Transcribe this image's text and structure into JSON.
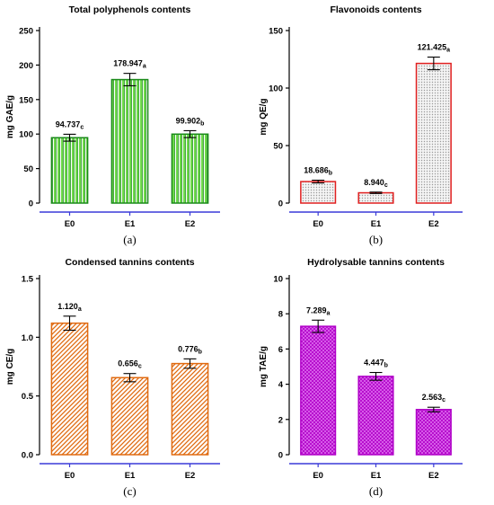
{
  "chart_data": [
    {
      "panel": "(a)",
      "type": "bar",
      "title": "Total polyphenols contents",
      "ylabel": "mg GAE/g",
      "xlabel": "",
      "categories": [
        "E0",
        "E1",
        "E2"
      ],
      "values": [
        94.737,
        178.947,
        99.902
      ],
      "errors": [
        5,
        9,
        5
      ],
      "value_labels": [
        "94.737",
        "178.947",
        "99.902"
      ],
      "letters": [
        "c",
        "a",
        "b"
      ],
      "ylim": [
        0,
        250
      ],
      "yticks": [
        0,
        50,
        100,
        150,
        200,
        250
      ],
      "ytick_labels": [
        "0",
        "50",
        "100",
        "150",
        "200",
        "250"
      ],
      "pattern": "vertical-stripes",
      "color": "#1a8a1a",
      "fill": "#6fdb4a",
      "axis_color": "#3a3ad8"
    },
    {
      "panel": "(b)",
      "type": "bar",
      "title": "Flavonoids contents",
      "ylabel": "mg QE/g",
      "xlabel": "",
      "categories": [
        "E0",
        "E1",
        "E2"
      ],
      "values": [
        18.686,
        8.94,
        121.425
      ],
      "errors": [
        1.2,
        0.6,
        5.5
      ],
      "value_labels": [
        "18.686",
        "8.940",
        "121.425"
      ],
      "letters": [
        "b",
        "c",
        "a"
      ],
      "ylim": [
        0,
        150
      ],
      "yticks": [
        0,
        50,
        100,
        150
      ],
      "ytick_labels": [
        "0",
        "50",
        "100",
        "150"
      ],
      "pattern": "dots",
      "color": "#e02020",
      "fill": "#d4d4d4",
      "axis_color": "#3a3ad8"
    },
    {
      "panel": "(c)",
      "type": "bar",
      "title": "Condensed tannins contents",
      "ylabel": "mg CE/g",
      "xlabel": "",
      "categories": [
        "E0",
        "E1",
        "E2"
      ],
      "values": [
        1.12,
        0.656,
        0.776
      ],
      "errors": [
        0.06,
        0.035,
        0.04
      ],
      "value_labels": [
        "1.120",
        "0.656",
        "0.776"
      ],
      "letters": [
        "a",
        "c",
        "b"
      ],
      "ylim": [
        0,
        1.5
      ],
      "yticks": [
        0,
        0.5,
        1.0,
        1.5
      ],
      "ytick_labels": [
        "0.0",
        "0.5",
        "1.0",
        "1.5"
      ],
      "pattern": "diagonal-stripes",
      "color": "#e06a10",
      "fill": "#f0a050",
      "axis_color": "#3a3ad8"
    },
    {
      "panel": "(d)",
      "type": "bar",
      "title": "Hydrolysable tannins contents",
      "ylabel": "mg TAE/g",
      "xlabel": "",
      "categories": [
        "E0",
        "E1",
        "E2"
      ],
      "values": [
        7.289,
        4.447,
        2.563
      ],
      "errors": [
        0.35,
        0.22,
        0.13
      ],
      "value_labels": [
        "7.289",
        "4.447",
        "2.563"
      ],
      "letters": [
        "a",
        "b",
        "c"
      ],
      "ylim": [
        0,
        10
      ],
      "yticks": [
        0,
        2,
        4,
        6,
        8,
        10
      ],
      "ytick_labels": [
        "0",
        "2",
        "4",
        "6",
        "8",
        "10"
      ],
      "pattern": "crosshatch",
      "color": "#b000c8",
      "fill": "#e070f0",
      "axis_color": "#3a3ad8"
    }
  ]
}
